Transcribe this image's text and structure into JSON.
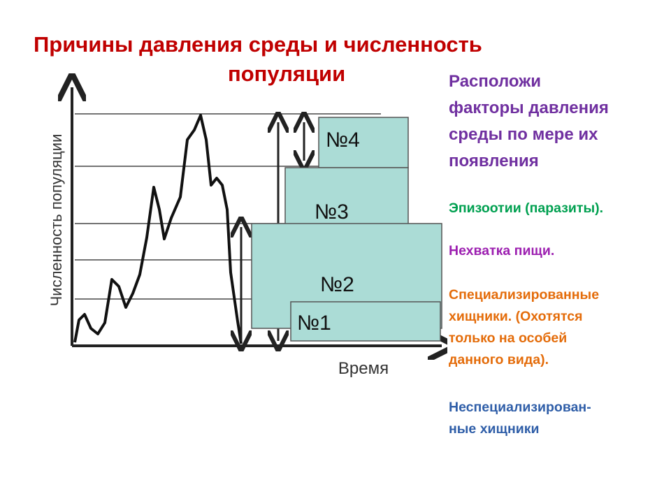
{
  "title": {
    "lines": [
      "Причины давления среды  и численность",
      "популяции"
    ]
  },
  "axes": {
    "y_label": "Численность популяции",
    "x_label": "Время"
  },
  "boxes": [
    "№4",
    "№3",
    "№2",
    "№1"
  ],
  "instruction": {
    "lines": [
      "Расположи",
      "факторы давления",
      "среды по мере их",
      "появления"
    ]
  },
  "factors": [
    {
      "lines": [
        "Эпизоотии (паразиты)."
      ]
    },
    {
      "lines": [
        "Нехватка пищи."
      ]
    },
    {
      "lines": [
        "Специализированные",
        "хищники. (Охотятся",
        "только на особей",
        "данного вида)."
      ]
    },
    {
      "lines": [
        "Неспециализирован-",
        "ные хищники"
      ]
    }
  ]
}
